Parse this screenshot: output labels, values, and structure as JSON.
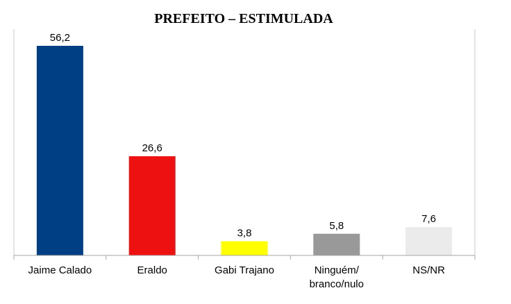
{
  "chart_data": {
    "type": "bar",
    "title": "PREFEITO – ESTIMULADA",
    "categories": [
      [
        "Jaime Calado"
      ],
      [
        "Eraldo"
      ],
      [
        "Gabi Trajano"
      ],
      [
        "Ninguém/",
        "branco/nulo"
      ],
      [
        "NS/NR"
      ]
    ],
    "values": [
      56.2,
      26.6,
      3.8,
      5.8,
      7.6
    ],
    "value_labels": [
      "56,2",
      "26,6",
      "3,8",
      "5,8",
      "7,6"
    ],
    "colors": [
      "#003F83",
      "#EE1111",
      "#FFFF00",
      "#999999",
      "#EBEBEB"
    ],
    "xlabel": "",
    "ylabel": "",
    "ylim": [
      0,
      56.2
    ],
    "grid": false,
    "legend": "none"
  }
}
